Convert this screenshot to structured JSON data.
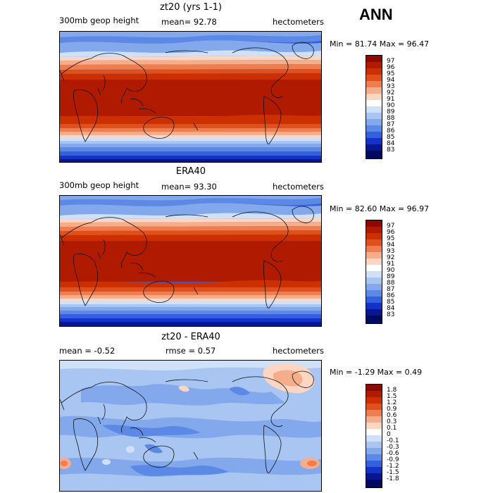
{
  "season": "ANN",
  "panels": [
    {
      "title": "zt20 (yrs 1-1)",
      "left_label": "300mb geop height",
      "center_label": "mean=  92.78",
      "right_label": "hectometers",
      "min_max": "Min =  81.74 Max =  96.47",
      "scale": {
        "labels": [
          "97",
          "96",
          "95",
          "94",
          "93",
          "92",
          "91",
          "90",
          "89",
          "88",
          "87",
          "86",
          "85",
          "84",
          "83"
        ],
        "colors": [
          "#8b0a00",
          "#b01a00",
          "#cc3000",
          "#e0501c",
          "#ee7e50",
          "#f6ad8c",
          "#fcd6c2",
          "#ffffff",
          "#cfe0f7",
          "#a9c6f2",
          "#83a9ec",
          "#5d89e6",
          "#3560dd",
          "#1432c9",
          "#0a1690",
          "#000a60"
        ]
      },
      "map_style": "zonal-model"
    },
    {
      "title": "ERA40",
      "left_label": "300mb geop height",
      "center_label": "mean=  93.30",
      "right_label": "hectometers",
      "min_max": "Min =  82.60 Max =  96.97",
      "scale": {
        "labels": [
          "97",
          "96",
          "95",
          "94",
          "93",
          "92",
          "91",
          "90",
          "89",
          "88",
          "87",
          "86",
          "85",
          "84",
          "83"
        ],
        "colors": [
          "#8b0a00",
          "#b01a00",
          "#cc3000",
          "#e0501c",
          "#ee7e50",
          "#f6ad8c",
          "#fcd6c2",
          "#ffffff",
          "#cfe0f7",
          "#a9c6f2",
          "#83a9ec",
          "#5d89e6",
          "#3560dd",
          "#1432c9",
          "#0a1690",
          "#000a60"
        ]
      },
      "map_style": "zonal-obs"
    },
    {
      "title": "zt20 - ERA40",
      "left_label": "mean =   -0.52",
      "center_label": "rmse =    0.57",
      "right_label": "hectometers",
      "min_max": "Min =  -1.29 Max =    0.49",
      "scale": {
        "labels": [
          "1.8",
          "1.5",
          "1.2",
          "0.9",
          "0.6",
          "0.3",
          "0.1",
          "0",
          "-0.1",
          "-0.3",
          "-0.6",
          "-0.9",
          "-1.2",
          "-1.5",
          "-1.8"
        ],
        "colors": [
          "#8b0a00",
          "#b01a00",
          "#cc3000",
          "#e0501c",
          "#ee7e50",
          "#f6ad8c",
          "#fcd6c2",
          "#ffffff",
          "#cfe0f7",
          "#a9c6f2",
          "#83a9ec",
          "#5d89e6",
          "#3560dd",
          "#1432c9",
          "#0a1690",
          "#000a60"
        ]
      },
      "map_style": "difference"
    }
  ]
}
